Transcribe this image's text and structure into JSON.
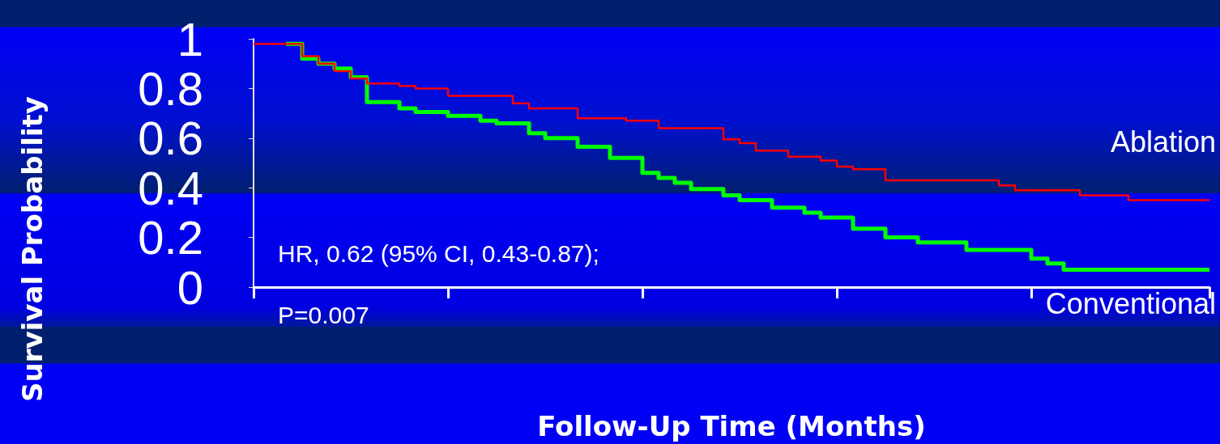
{
  "chart_data": {
    "type": "step",
    "xlabel": "Follow-Up Time (Months)",
    "ylabel": "Survival Probability",
    "categories": [
      null,
      null,
      null,
      null,
      null,
      null,
      null,
      null,
      null,
      null,
      null,
      null,
      null,
      null,
      null,
      null,
      null,
      null,
      null,
      null,
      null,
      null,
      null,
      null,
      null,
      null,
      null,
      null,
      null,
      null,
      null,
      null,
      null,
      null,
      null,
      null,
      null,
      null,
      null,
      null,
      null,
      null,
      null,
      null,
      null,
      null,
      null,
      null,
      null,
      null,
      null,
      null,
      null,
      null,
      null,
      null,
      null,
      null,
      null,
      null
    ],
    "ylim": [
      0,
      1
    ],
    "yticks": [
      0,
      0.2,
      0.4,
      0.6,
      0.8,
      1
    ],
    "grid": false,
    "series": [
      {
        "name": "Ablation",
        "color": "#ff0000",
        "values": [
          0.98,
          0.98,
          0.98,
          0.93,
          0.9,
          0.87,
          0.84,
          0.82,
          0.82,
          0.81,
          0.8,
          0.8,
          0.77,
          0.77,
          0.77,
          0.77,
          0.74,
          0.72,
          0.72,
          0.72,
          0.68,
          0.68,
          0.68,
          0.67,
          0.67,
          0.64,
          0.64,
          0.64,
          0.64,
          0.595,
          0.58,
          0.55,
          0.55,
          0.525,
          0.525,
          0.51,
          0.485,
          0.475,
          0.475,
          0.43,
          0.43,
          0.43,
          0.43,
          0.43,
          0.43,
          0.43,
          0.41,
          0.39,
          0.39,
          0.39,
          0.39,
          0.37,
          0.37,
          0.37,
          0.35,
          0.35,
          0.35,
          0.35,
          0.35,
          0.35
        ]
      },
      {
        "name": "Conventional",
        "color": "#00ff00",
        "values": [
          null,
          null,
          0.98,
          0.92,
          0.9,
          0.88,
          0.845,
          0.745,
          0.745,
          0.72,
          0.705,
          0.705,
          0.69,
          0.69,
          0.67,
          0.66,
          0.66,
          0.62,
          0.6,
          0.6,
          0.565,
          0.565,
          0.52,
          0.52,
          0.46,
          0.44,
          0.42,
          0.395,
          0.395,
          0.37,
          0.35,
          0.35,
          0.32,
          0.32,
          0.3,
          0.28,
          0.28,
          0.235,
          0.235,
          0.2,
          0.2,
          0.18,
          0.18,
          0.18,
          0.15,
          0.15,
          0.15,
          0.15,
          0.115,
          0.095,
          0.07,
          0.07,
          0.07,
          0.07,
          0.07,
          0.07,
          0.07,
          0.07,
          0.07,
          0.07
        ]
      }
    ],
    "annotations": [
      "HR, 0.62 (95% CI, 0.43-0.87);",
      "P=0.007"
    ]
  }
}
